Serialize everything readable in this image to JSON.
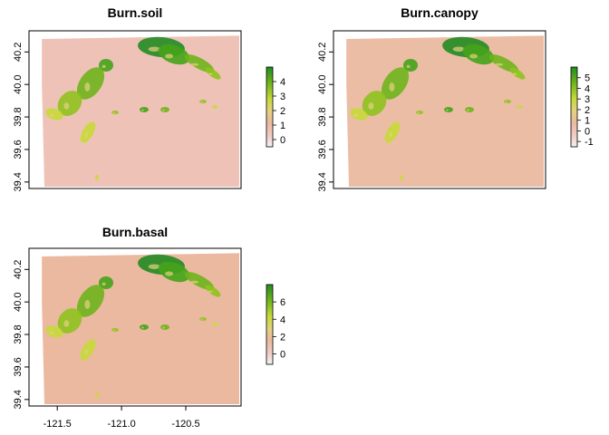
{
  "panels": [
    {
      "title": "Burn.soil",
      "yticks": [
        "39.4",
        "39.6",
        "39.8",
        "40.0",
        "40.2"
      ],
      "legend": {
        "labels": [
          "0",
          "1",
          "2",
          "3",
          "4"
        ],
        "vmin": -0.5,
        "vmax": 5
      },
      "background_color": "#efc2b8"
    },
    {
      "title": "Burn.canopy",
      "yticks": [
        "39.4",
        "39.6",
        "39.8",
        "40.0",
        "40.2"
      ],
      "legend": {
        "labels": [
          "-1",
          "0",
          "1",
          "2",
          "3",
          "4",
          "5"
        ],
        "vmin": -1.5,
        "vmax": 6
      },
      "background_color": "#ecbda5"
    },
    {
      "title": "Burn.basal",
      "yticks": [
        "39.4",
        "39.6",
        "39.8",
        "40.0",
        "40.2"
      ],
      "xticks": [
        "-121.5",
        "-121.0",
        "-120.5"
      ],
      "legend": {
        "labels": [
          "0",
          "2",
          "4",
          "6"
        ],
        "vmin": -1.2,
        "vmax": 8
      },
      "background_color": "#ebb99f"
    }
  ],
  "extent": {
    "xmin": -121.72,
    "xmax": -120.07,
    "ymin": 39.36,
    "ymax": 40.33
  },
  "palette": [
    "#f2f2f2",
    "#f0c9c0",
    "#ebb99f",
    "#e8c2a2",
    "#e3d27f",
    "#c6d938",
    "#8fc21f",
    "#45a319",
    "#228b22"
  ]
}
